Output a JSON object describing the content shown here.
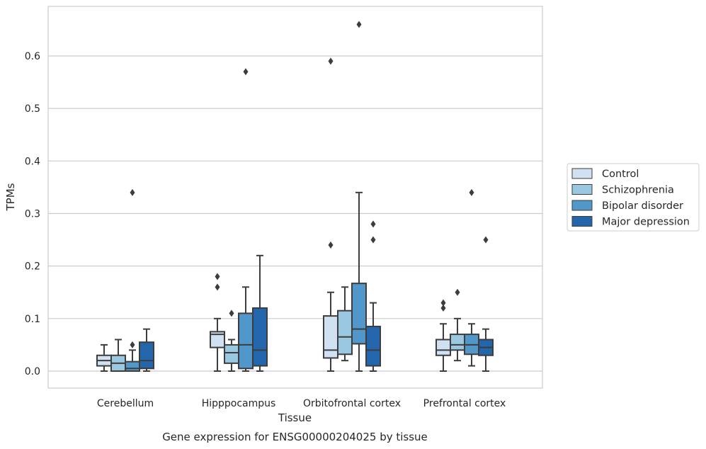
{
  "chart_data": {
    "type": "boxplot",
    "title": "Gene expression for ENSG00000204025 by tissue",
    "xlabel": "Tissue",
    "ylabel": "TPMs",
    "ylim": [
      -0.032,
      0.695
    ],
    "yticks": [
      "0.0",
      "0.1",
      "0.2",
      "0.3",
      "0.4",
      "0.5",
      "0.6"
    ],
    "grid": "horizontal",
    "legend_position": "right",
    "categories": [
      "Cerebellum",
      "Hipppocampus",
      "Orbitofrontal cortex",
      "Prefrontal cortex"
    ],
    "series": [
      {
        "name": "Control",
        "color": "#d0e1f2",
        "boxes": [
          {
            "whisker_low": 0.0,
            "q1": 0.01,
            "median": 0.02,
            "q3": 0.03,
            "whisker_high": 0.05,
            "outliers": []
          },
          {
            "whisker_low": 0.0,
            "q1": 0.045,
            "median": 0.07,
            "q3": 0.075,
            "whisker_high": 0.1,
            "outliers": [
              0.16,
              0.18
            ]
          },
          {
            "whisker_low": 0.0,
            "q1": 0.025,
            "median": 0.04,
            "q3": 0.105,
            "whisker_high": 0.15,
            "outliers": [
              0.24,
              0.59
            ]
          },
          {
            "whisker_low": 0.0,
            "q1": 0.03,
            "median": 0.04,
            "q3": 0.06,
            "whisker_high": 0.09,
            "outliers": [
              0.12,
              0.13
            ]
          }
        ]
      },
      {
        "name": "Schizophrenia",
        "color": "#9ac8e0",
        "boxes": [
          {
            "whisker_low": 0.0,
            "q1": 0.0,
            "median": 0.015,
            "q3": 0.03,
            "whisker_high": 0.06,
            "outliers": []
          },
          {
            "whisker_low": 0.0,
            "q1": 0.015,
            "median": 0.035,
            "q3": 0.05,
            "whisker_high": 0.06,
            "outliers": [
              0.11
            ]
          },
          {
            "whisker_low": 0.02,
            "q1": 0.032,
            "median": 0.065,
            "q3": 0.115,
            "whisker_high": 0.16,
            "outliers": []
          },
          {
            "whisker_low": 0.02,
            "q1": 0.04,
            "median": 0.05,
            "q3": 0.07,
            "whisker_high": 0.1,
            "outliers": [
              0.15
            ]
          }
        ]
      },
      {
        "name": "Bipolar disorder",
        "color": "#5197c9",
        "boxes": [
          {
            "whisker_low": 0.0,
            "q1": 0.0,
            "median": 0.005,
            "q3": 0.018,
            "whisker_high": 0.04,
            "outliers": [
              0.05,
              0.34
            ]
          },
          {
            "whisker_low": 0.0,
            "q1": 0.005,
            "median": 0.05,
            "q3": 0.11,
            "whisker_high": 0.16,
            "outliers": [
              0.57
            ]
          },
          {
            "whisker_low": 0.0,
            "q1": 0.052,
            "median": 0.08,
            "q3": 0.167,
            "whisker_high": 0.34,
            "outliers": [
              0.66
            ]
          },
          {
            "whisker_low": 0.01,
            "q1": 0.032,
            "median": 0.05,
            "q3": 0.07,
            "whisker_high": 0.09,
            "outliers": [
              0.34
            ]
          }
        ]
      },
      {
        "name": "Major depression",
        "color": "#2366ac",
        "boxes": [
          {
            "whisker_low": 0.0,
            "q1": 0.005,
            "median": 0.02,
            "q3": 0.055,
            "whisker_high": 0.08,
            "outliers": []
          },
          {
            "whisker_low": 0.0,
            "q1": 0.01,
            "median": 0.04,
            "q3": 0.12,
            "whisker_high": 0.22,
            "outliers": []
          },
          {
            "whisker_low": 0.0,
            "q1": 0.01,
            "median": 0.04,
            "q3": 0.085,
            "whisker_high": 0.13,
            "outliers": [
              0.25,
              0.28
            ]
          },
          {
            "whisker_low": 0.0,
            "q1": 0.03,
            "median": 0.045,
            "q3": 0.06,
            "whisker_high": 0.08,
            "outliers": [
              0.25
            ]
          }
        ]
      }
    ]
  }
}
